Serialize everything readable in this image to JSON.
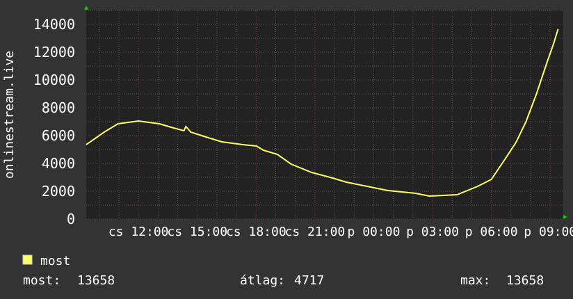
{
  "chart_data": {
    "type": "line",
    "ylabel": "onlinestream.live",
    "xlabel": "",
    "ylim": [
      0,
      15000
    ],
    "xlim": [
      "cs 09:20",
      "p 09:40"
    ],
    "y_ticks": [
      "0",
      "2000",
      "4000",
      "6000",
      "8000",
      "10000",
      "12000",
      "14000"
    ],
    "x_ticks": [
      "cs 12:00",
      "cs 15:00",
      "cs 18:00",
      "cs 21:00",
      "p 00:00",
      "p 03:00",
      "p 06:00",
      "p 09:00"
    ],
    "grid": true,
    "legend_position": "bottom-left",
    "colors": {
      "background": "#333333",
      "plot": "#222222",
      "line": "#ffff66",
      "major_grid": "#7a3a3a",
      "minor_grid": "#555555",
      "arrow": "#00cc00"
    },
    "series": [
      {
        "name": "most",
        "x": [
          "cs 09:20",
          "cs 10:15",
          "cs 10:57",
          "cs 12:00",
          "cs 13:04",
          "cs 13:47",
          "cs 14:19",
          "cs 14:25",
          "cs 14:40",
          "cs 15:33",
          "cs 16:15",
          "cs 17:19",
          "cs 18:01",
          "cs 18:22",
          "cs 19:05",
          "cs 19:47",
          "cs 20:50",
          "cs 21:54",
          "cs 22:36",
          "cs 23:40",
          "p 00:43",
          "p 02:08",
          "p 02:50",
          "p 04:15",
          "p 05:18",
          "p 06:00",
          "p 06:43",
          "p 07:15",
          "p 07:46",
          "p 08:18",
          "p 08:50",
          "p 09:11",
          "p 09:24"
        ],
        "values": [
          5350,
          6250,
          6850,
          7050,
          6850,
          6550,
          6350,
          6650,
          6250,
          5850,
          5550,
          5350,
          5250,
          4950,
          4650,
          3950,
          3350,
          2950,
          2650,
          2350,
          2050,
          1850,
          1650,
          1750,
          2350,
          2850,
          4350,
          5500,
          7000,
          9000,
          11250,
          12650,
          13658
        ]
      }
    ],
    "stats": {
      "current_label": "most:",
      "current": "13658",
      "avg_label": "átlag:",
      "avg": "4717",
      "max_label": "max:",
      "max": "13658"
    }
  }
}
